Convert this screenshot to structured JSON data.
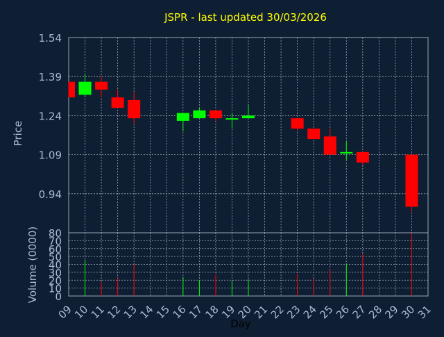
{
  "chart_data": {
    "type": "candlestick",
    "title": "JSPR - last updated 30/03/2026",
    "xlabel": "Day",
    "price_ylabel": "Price",
    "volume_ylabel": "Volume (0000)",
    "price_yticks": [
      "1.54",
      "1.39",
      "1.24",
      "1.09",
      "0.94"
    ],
    "volume_yticks": [
      "0",
      "10",
      "20",
      "30",
      "40",
      "50",
      "60",
      "70",
      "80"
    ],
    "x_ticks": [
      "09",
      "10",
      "11",
      "12",
      "13",
      "14",
      "15",
      "16",
      "17",
      "18",
      "19",
      "20",
      "21",
      "22",
      "23",
      "24",
      "25",
      "26",
      "27",
      "28",
      "29",
      "30",
      "31"
    ],
    "price_ylim": [
      0.79,
      1.54
    ],
    "volume_ylim": [
      0,
      80
    ],
    "grid": true,
    "colors": {
      "background": "#0f1f33",
      "up": "#00ff00",
      "down": "#ff0000",
      "grid": "#9aa7b5",
      "axis_text": "#a9bcd6",
      "title": "#ffff00"
    },
    "candles": [
      {
        "day": "09",
        "open": 1.37,
        "high": 1.37,
        "low": 1.31,
        "close": 1.31,
        "volume": 0
      },
      {
        "day": "10",
        "open": 1.32,
        "high": 1.4,
        "low": 1.31,
        "close": 1.37,
        "volume": 46
      },
      {
        "day": "11",
        "open": 1.37,
        "high": 1.39,
        "low": 1.31,
        "close": 1.34,
        "volume": 18
      },
      {
        "day": "12",
        "open": 1.31,
        "high": 1.34,
        "low": 1.27,
        "close": 1.27,
        "volume": 23
      },
      {
        "day": "13",
        "open": 1.3,
        "high": 1.33,
        "low": 1.21,
        "close": 1.23,
        "volume": 40
      },
      {
        "day": "16",
        "open": 1.22,
        "high": 1.25,
        "low": 1.18,
        "close": 1.25,
        "volume": 24
      },
      {
        "day": "17",
        "open": 1.23,
        "high": 1.27,
        "low": 1.23,
        "close": 1.26,
        "volume": 20
      },
      {
        "day": "18",
        "open": 1.26,
        "high": 1.26,
        "low": 1.22,
        "close": 1.23,
        "volume": 27
      },
      {
        "day": "19",
        "open": 1.23,
        "high": 1.25,
        "low": 1.19,
        "close": 1.23,
        "volume": 19
      },
      {
        "day": "20",
        "open": 1.23,
        "high": 1.28,
        "low": 1.23,
        "close": 1.24,
        "volume": 21
      },
      {
        "day": "23",
        "open": 1.23,
        "high": 1.23,
        "low": 1.18,
        "close": 1.19,
        "volume": 28
      },
      {
        "day": "24",
        "open": 1.19,
        "high": 1.19,
        "low": 1.15,
        "close": 1.15,
        "volume": 22
      },
      {
        "day": "25",
        "open": 1.16,
        "high": 1.19,
        "low": 1.09,
        "close": 1.09,
        "volume": 33
      },
      {
        "day": "26",
        "open": 1.1,
        "high": 1.14,
        "low": 1.07,
        "close": 1.1,
        "volume": 40
      },
      {
        "day": "27",
        "open": 1.1,
        "high": 1.1,
        "low": 1.05,
        "close": 1.06,
        "volume": 53
      },
      {
        "day": "30",
        "open": 1.09,
        "high": 1.09,
        "low": 0.87,
        "close": 0.89,
        "volume": 80
      }
    ]
  }
}
